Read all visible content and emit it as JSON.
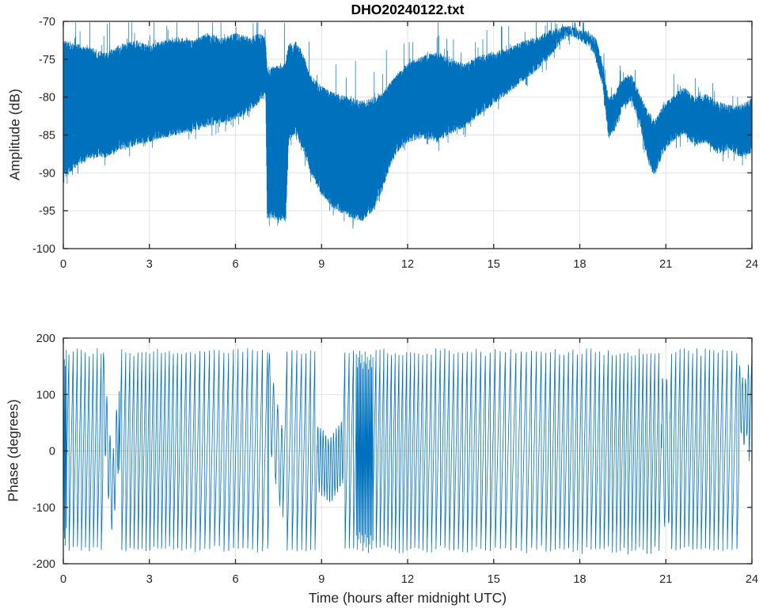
{
  "figure": {
    "background": "#ffffff",
    "line_color": "#0072BD",
    "grid_color": "#e2e2e2",
    "axis_color": "#262626",
    "tick_label_color": "#262626"
  },
  "chart_data": [
    {
      "type": "line",
      "title": "DHO20240122.txt",
      "ylabel": "Amplitude (dB)",
      "xlabel": "",
      "xlim": [
        0,
        24
      ],
      "ylim": [
        -100,
        -70
      ],
      "xticks": [
        0,
        3,
        6,
        9,
        12,
        15,
        18,
        21,
        24
      ],
      "yticks": [
        -100,
        -95,
        -90,
        -85,
        -80,
        -75,
        -70
      ],
      "grid": true,
      "legend": "none",
      "series": [
        {
          "name": "amplitude",
          "color": "#0072BD",
          "description": "Dense noisy VLF amplitude band; values given as envelope keypoints [hour, lower dB, upper dB] read from the plot",
          "envelope_keypoints": [
            [
              0.0,
              -91,
              -72.5
            ],
            [
              0.5,
              -89,
              -73
            ],
            [
              1.0,
              -88,
              -73.5
            ],
            [
              1.5,
              -88,
              -74
            ],
            [
              2.0,
              -87,
              -73
            ],
            [
              2.5,
              -86.5,
              -72.5
            ],
            [
              3.0,
              -86,
              -73
            ],
            [
              3.5,
              -85.5,
              -72.5
            ],
            [
              4.0,
              -85,
              -72
            ],
            [
              4.5,
              -84.5,
              -72.5
            ],
            [
              5.0,
              -84,
              -71.5
            ],
            [
              5.5,
              -83.5,
              -72
            ],
            [
              6.0,
              -83,
              -71.5
            ],
            [
              6.5,
              -82,
              -72
            ],
            [
              6.9,
              -80.5,
              -71.5
            ],
            [
              7.05,
              -80,
              -72
            ],
            [
              7.1,
              -96,
              -76
            ],
            [
              7.75,
              -96.5,
              -75.5
            ],
            [
              7.85,
              -86,
              -73
            ],
            [
              8.1,
              -85,
              -72.5
            ],
            [
              8.35,
              -87,
              -74
            ],
            [
              8.6,
              -90,
              -77
            ],
            [
              9.0,
              -93,
              -78.5
            ],
            [
              9.5,
              -95,
              -79.5
            ],
            [
              10.0,
              -96,
              -80
            ],
            [
              10.4,
              -96.5,
              -80.5
            ],
            [
              10.8,
              -95,
              -80
            ],
            [
              11.1,
              -92.5,
              -79.5
            ],
            [
              11.4,
              -89,
              -78
            ],
            [
              11.7,
              -87,
              -76.5
            ],
            [
              12.0,
              -86,
              -75.5
            ],
            [
              12.5,
              -85.5,
              -74.5
            ],
            [
              13.0,
              -86,
              -74
            ],
            [
              13.5,
              -85,
              -75
            ],
            [
              14.0,
              -84,
              -75.5
            ],
            [
              14.5,
              -82.5,
              -74.5
            ],
            [
              15.0,
              -81,
              -74
            ],
            [
              15.5,
              -79.5,
              -73.5
            ],
            [
              16.0,
              -78,
              -72.5
            ],
            [
              16.5,
              -76.5,
              -72
            ],
            [
              17.0,
              -74.5,
              -71
            ],
            [
              17.4,
              -72.5,
              -70.6
            ],
            [
              17.7,
              -72,
              -70.5
            ],
            [
              18.0,
              -72.5,
              -71
            ],
            [
              18.3,
              -73.5,
              -71.2
            ],
            [
              18.55,
              -75,
              -72
            ],
            [
              18.8,
              -79,
              -75.5
            ],
            [
              19.0,
              -85.5,
              -80
            ],
            [
              19.2,
              -84.5,
              -79.5
            ],
            [
              19.5,
              -81.5,
              -77.5
            ],
            [
              19.8,
              -80.5,
              -77
            ],
            [
              20.1,
              -84,
              -79.5
            ],
            [
              20.4,
              -89,
              -82
            ],
            [
              20.6,
              -90.5,
              -83
            ],
            [
              20.9,
              -87.5,
              -81
            ],
            [
              21.2,
              -86,
              -80
            ],
            [
              21.6,
              -85,
              -78.5
            ],
            [
              22.0,
              -86.5,
              -80
            ],
            [
              22.4,
              -86,
              -79.5
            ],
            [
              22.8,
              -87.5,
              -80.5
            ],
            [
              23.2,
              -87,
              -81
            ],
            [
              23.6,
              -88,
              -81
            ],
            [
              24.0,
              -87.5,
              -80
            ]
          ]
        }
      ]
    },
    {
      "type": "line",
      "title": "",
      "ylabel": "Phase (degrees)",
      "xlabel": "Time (hours after midnight UTC)",
      "xlim": [
        0,
        24
      ],
      "ylim": [
        -200,
        200
      ],
      "xticks": [
        0,
        3,
        6,
        9,
        12,
        15,
        18,
        21,
        24
      ],
      "yticks": [
        -200,
        -100,
        0,
        100,
        200
      ],
      "grid": true,
      "legend": "none",
      "series": [
        {
          "name": "phase",
          "color": "#0072BD",
          "description": "Phase wrapped to +/-180 deg, continuously cycling ~6.5 cycles/hour; segments list deviations read from the plot",
          "wrap_range": [
            -180,
            180
          ],
          "base_cycles_per_hour": 6.5,
          "segments": [
            {
              "mode": "dense",
              "t0": 0.0,
              "t1": 0.12,
              "cycles_per_hour": 30
            },
            {
              "mode": "wobble",
              "t0": 1.38,
              "t1": 1.95,
              "amp": 70,
              "cycles_per_hour": 9,
              "center_path": [
                [
                  0,
                  120
                ],
                [
                  0.35,
                  -20
                ],
                [
                  0.6,
                  -80
                ],
                [
                  1,
                  60
                ]
              ]
            },
            {
              "mode": "wobble",
              "t0": 7.15,
              "t1": 7.65,
              "amp": 75,
              "cycles_per_hour": 7,
              "center_path": [
                [
                  0,
                  100
                ],
                [
                  0.5,
                  20
                ],
                [
                  1,
                  -40
                ]
              ]
            },
            {
              "mode": "wobble",
              "t0": 8.85,
              "t1": 9.75,
              "amp": 55,
              "cycles_per_hour": 11,
              "center_path": [
                [
                  0,
                  -10
                ],
                [
                  0.5,
                  -35
                ],
                [
                  1,
                  0
                ]
              ]
            },
            {
              "mode": "dense",
              "t0": 10.2,
              "t1": 10.8,
              "cycles_per_hour": 26
            },
            {
              "mode": "wobble",
              "t0": 20.85,
              "t1": 21.15,
              "amp": 130,
              "cycles_per_hour": 7,
              "center_path": [
                [
                  0,
                  0
                ],
                [
                  1,
                  0
                ]
              ]
            },
            {
              "mode": "wobble",
              "t0": 23.55,
              "t1": 23.9,
              "amp": 55,
              "cycles_per_hour": 10,
              "center_path": [
                [
                  0,
                  100
                ],
                [
                  0.5,
                  65
                ],
                [
                  1,
                  95
                ]
              ]
            }
          ]
        }
      ]
    }
  ]
}
